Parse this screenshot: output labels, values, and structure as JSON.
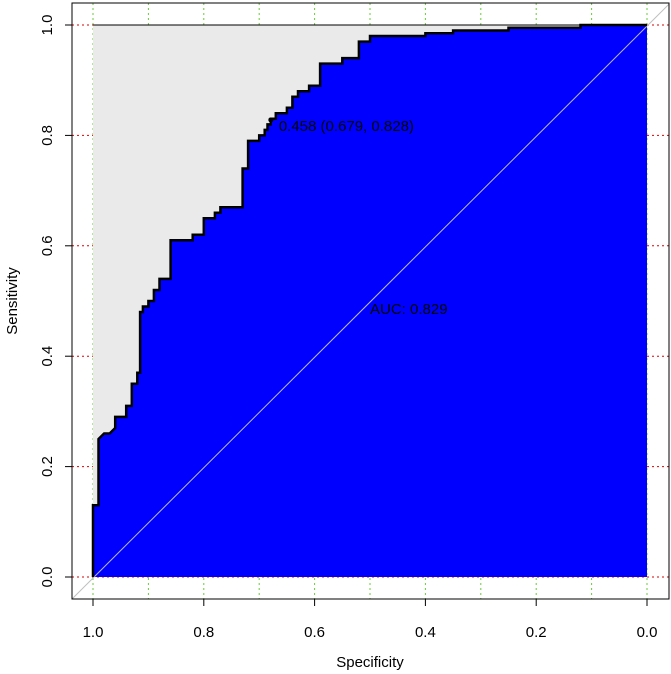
{
  "chart_data": {
    "type": "line",
    "title": "",
    "xlabel": "Specificity",
    "ylabel": "Sensitivity",
    "xlim": [
      1.0,
      0.0
    ],
    "ylim": [
      0.0,
      1.0
    ],
    "x_reversed": true,
    "x_ticks": [
      "1.0",
      "0.8",
      "0.6",
      "0.4",
      "0.2",
      "0.0"
    ],
    "y_ticks": [
      "0.0",
      "0.2",
      "0.4",
      "0.6",
      "0.8",
      "1.0"
    ],
    "grid": {
      "vertical": "green dotted, every 0.1",
      "horizontal": "red dotted, every 0.2"
    },
    "colors": {
      "auc_fill": "#0000ff",
      "upper_region": "#eaeaea",
      "roc_line": "#000000",
      "diagonal": "#bfbfbf",
      "grid_vertical": "#66cc33",
      "grid_horizontal": "#dd0000"
    },
    "auc_label": "AUC: 0.829",
    "threshold_label": "0.458 (0.679, 0.828)",
    "threshold_point": {
      "specificity": 0.679,
      "sensitivity": 0.828
    },
    "roc": {
      "specificity": [
        1.0,
        1.0,
        0.99,
        0.99,
        0.98,
        0.97,
        0.96,
        0.96,
        0.94,
        0.94,
        0.93,
        0.93,
        0.92,
        0.92,
        0.915,
        0.915,
        0.91,
        0.91,
        0.9,
        0.9,
        0.89,
        0.89,
        0.88,
        0.88,
        0.86,
        0.86,
        0.82,
        0.82,
        0.8,
        0.8,
        0.78,
        0.78,
        0.77,
        0.77,
        0.73,
        0.73,
        0.72,
        0.72,
        0.7,
        0.7,
        0.69,
        0.69,
        0.685,
        0.685,
        0.679,
        0.679,
        0.67,
        0.67,
        0.65,
        0.65,
        0.64,
        0.64,
        0.63,
        0.63,
        0.61,
        0.61,
        0.59,
        0.59,
        0.55,
        0.55,
        0.52,
        0.52,
        0.5,
        0.5,
        0.48,
        0.48,
        0.4,
        0.4,
        0.35,
        0.35,
        0.25,
        0.25,
        0.12,
        0.12,
        0.0
      ],
      "sensitivity": [
        0.0,
        0.13,
        0.13,
        0.25,
        0.26,
        0.26,
        0.27,
        0.29,
        0.29,
        0.31,
        0.31,
        0.35,
        0.35,
        0.37,
        0.37,
        0.48,
        0.48,
        0.49,
        0.49,
        0.5,
        0.5,
        0.52,
        0.52,
        0.54,
        0.54,
        0.61,
        0.61,
        0.62,
        0.62,
        0.65,
        0.65,
        0.66,
        0.66,
        0.67,
        0.67,
        0.74,
        0.74,
        0.79,
        0.79,
        0.8,
        0.8,
        0.81,
        0.81,
        0.82,
        0.82,
        0.83,
        0.83,
        0.84,
        0.84,
        0.85,
        0.85,
        0.87,
        0.87,
        0.88,
        0.88,
        0.89,
        0.89,
        0.93,
        0.93,
        0.94,
        0.94,
        0.97,
        0.97,
        0.98,
        0.98,
        0.98,
        0.98,
        0.985,
        0.985,
        0.99,
        0.99,
        0.995,
        0.995,
        1.0,
        1.0
      ]
    }
  }
}
